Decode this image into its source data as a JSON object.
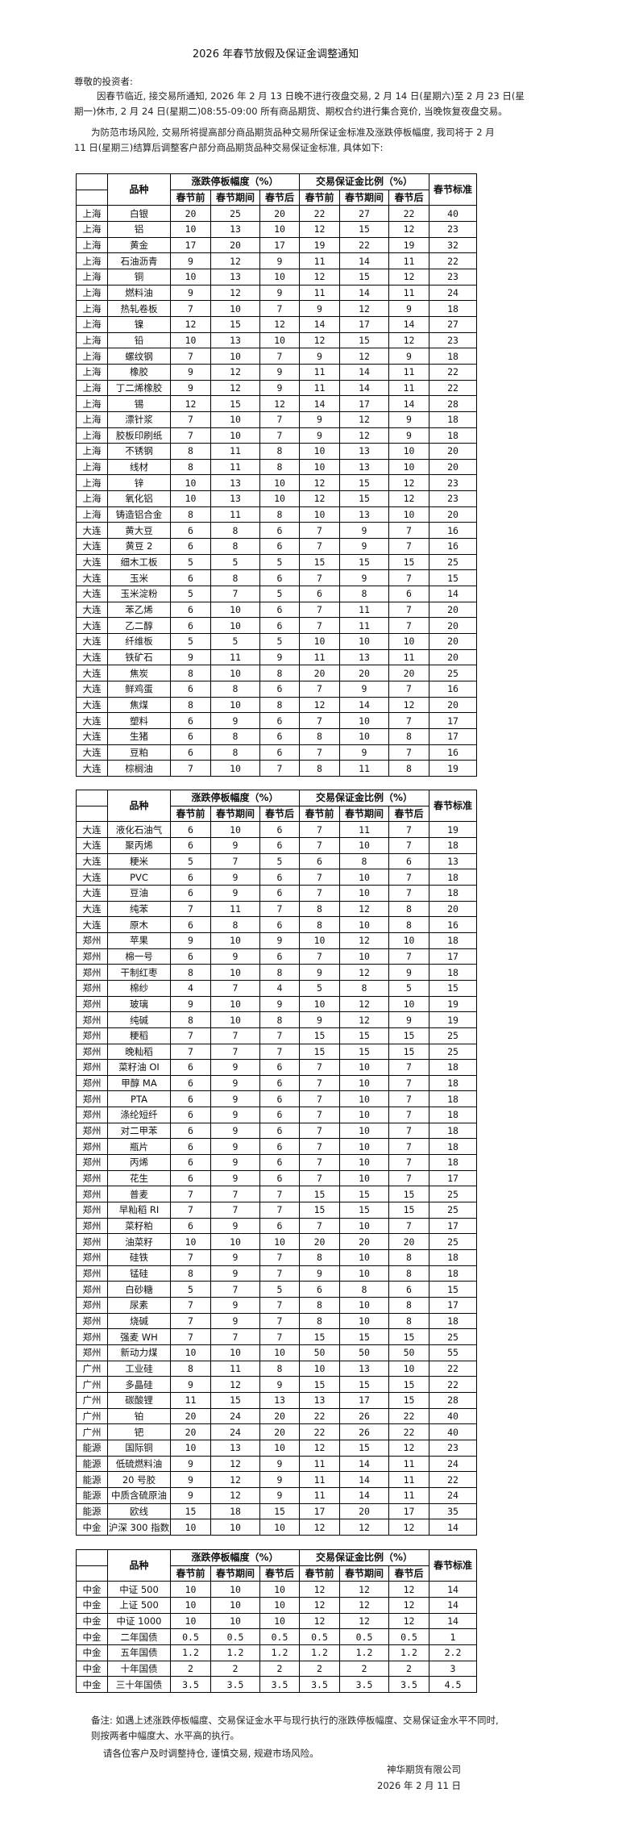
{
  "title": "2026 年春节放假及保证金调整通知",
  "greeting": "尊敬的投资者:",
  "paragraph1": [
    "因春节临近, 接交易所通知, 2026 年 2 月 13 日晚不进行夜盘交易, 2 月 14 日(星期六)至 2 月 23 日(星",
    "期一)休市, 2 月 24 日(星期二)08:55-09:00 所有商品期货、期权合约进行集合竞价, 当晚恢复夜盘交易。"
  ],
  "paragraph2": [
    "为防范市场风险, 交易所将提高部分商品期货品种交易所保证金标准及涨跌停板幅度, 我司将于 2 月",
    "11 日(星期三)结算后调整客户部分商品期货品种交易保证金标准, 具体如下:"
  ],
  "table_header": {
    "variety": "品种",
    "limit_group": "涨跌停板幅度（%）",
    "margin_group": "交易保证金比例（%）",
    "standard": "春节标准",
    "sub": [
      "春节前",
      "春节期间",
      "春节后",
      "春节前",
      "春节期间",
      "春节后"
    ]
  },
  "tables": [
    [
      [
        "上海",
        "白银",
        "20",
        "25",
        "20",
        "22",
        "27",
        "22",
        "40"
      ],
      [
        "上海",
        "铝",
        "10",
        "13",
        "10",
        "12",
        "15",
        "12",
        "23"
      ],
      [
        "上海",
        "黄金",
        "17",
        "20",
        "17",
        "19",
        "22",
        "19",
        "32"
      ],
      [
        "上海",
        "石油沥青",
        "9",
        "12",
        "9",
        "11",
        "14",
        "11",
        "22"
      ],
      [
        "上海",
        "铜",
        "10",
        "13",
        "10",
        "12",
        "15",
        "12",
        "23"
      ],
      [
        "上海",
        "燃料油",
        "9",
        "12",
        "9",
        "11",
        "14",
        "11",
        "24"
      ],
      [
        "上海",
        "热轧卷板",
        "7",
        "10",
        "7",
        "9",
        "12",
        "9",
        "18"
      ],
      [
        "上海",
        "镍",
        "12",
        "15",
        "12",
        "14",
        "17",
        "14",
        "27"
      ],
      [
        "上海",
        "铅",
        "10",
        "13",
        "10",
        "12",
        "15",
        "12",
        "23"
      ],
      [
        "上海",
        "螺纹钢",
        "7",
        "10",
        "7",
        "9",
        "12",
        "9",
        "18"
      ],
      [
        "上海",
        "橡胶",
        "9",
        "12",
        "9",
        "11",
        "14",
        "11",
        "22"
      ],
      [
        "上海",
        "丁二烯橡胶",
        "9",
        "12",
        "9",
        "11",
        "14",
        "11",
        "22"
      ],
      [
        "上海",
        "锡",
        "12",
        "15",
        "12",
        "14",
        "17",
        "14",
        "28"
      ],
      [
        "上海",
        "漂针浆",
        "7",
        "10",
        "7",
        "9",
        "12",
        "9",
        "18"
      ],
      [
        "上海",
        "胶板印刷纸",
        "7",
        "10",
        "7",
        "9",
        "12",
        "9",
        "18"
      ],
      [
        "上海",
        "不锈钢",
        "8",
        "11",
        "8",
        "10",
        "13",
        "10",
        "20"
      ],
      [
        "上海",
        "线材",
        "8",
        "11",
        "8",
        "10",
        "13",
        "10",
        "20"
      ],
      [
        "上海",
        "锌",
        "10",
        "13",
        "10",
        "12",
        "15",
        "12",
        "23"
      ],
      [
        "上海",
        "氧化铝",
        "10",
        "13",
        "10",
        "12",
        "15",
        "12",
        "23"
      ],
      [
        "上海",
        "铸造铝合金",
        "8",
        "11",
        "8",
        "10",
        "13",
        "10",
        "20"
      ],
      [
        "大连",
        "黄大豆",
        "6",
        "8",
        "6",
        "7",
        "9",
        "7",
        "16"
      ],
      [
        "大连",
        "黄豆 2",
        "6",
        "8",
        "6",
        "7",
        "9",
        "7",
        "16"
      ],
      [
        "大连",
        "细木工板",
        "5",
        "5",
        "5",
        "15",
        "15",
        "15",
        "25"
      ],
      [
        "大连",
        "玉米",
        "6",
        "8",
        "6",
        "7",
        "9",
        "7",
        "15"
      ],
      [
        "大连",
        "玉米淀粉",
        "5",
        "7",
        "5",
        "6",
        "8",
        "6",
        "14"
      ],
      [
        "大连",
        "苯乙烯",
        "6",
        "10",
        "6",
        "7",
        "11",
        "7",
        "20"
      ],
      [
        "大连",
        "乙二醇",
        "6",
        "10",
        "6",
        "7",
        "11",
        "7",
        "20"
      ],
      [
        "大连",
        "纤维板",
        "5",
        "5",
        "5",
        "10",
        "10",
        "10",
        "20"
      ],
      [
        "大连",
        "铁矿石",
        "9",
        "11",
        "9",
        "11",
        "13",
        "11",
        "20"
      ],
      [
        "大连",
        "焦炭",
        "8",
        "10",
        "8",
        "20",
        "20",
        "20",
        "25"
      ],
      [
        "大连",
        "鲜鸡蛋",
        "6",
        "8",
        "6",
        "7",
        "9",
        "7",
        "16"
      ],
      [
        "大连",
        "焦煤",
        "8",
        "10",
        "8",
        "12",
        "14",
        "12",
        "20"
      ],
      [
        "大连",
        "塑料",
        "6",
        "9",
        "6",
        "7",
        "10",
        "7",
        "17"
      ],
      [
        "大连",
        "生猪",
        "6",
        "8",
        "6",
        "8",
        "10",
        "8",
        "17"
      ],
      [
        "大连",
        "豆粕",
        "6",
        "8",
        "6",
        "7",
        "9",
        "7",
        "16"
      ],
      [
        "大连",
        "棕榈油",
        "7",
        "10",
        "7",
        "8",
        "11",
        "8",
        "19"
      ]
    ],
    [
      [
        "大连",
        "液化石油气",
        "6",
        "10",
        "6",
        "7",
        "11",
        "7",
        "19"
      ],
      [
        "大连",
        "聚丙烯",
        "6",
        "9",
        "6",
        "7",
        "10",
        "7",
        "18"
      ],
      [
        "大连",
        "粳米",
        "5",
        "7",
        "5",
        "6",
        "8",
        "6",
        "13"
      ],
      [
        "大连",
        "PVC",
        "6",
        "9",
        "6",
        "7",
        "10",
        "7",
        "18"
      ],
      [
        "大连",
        "豆油",
        "6",
        "9",
        "6",
        "7",
        "10",
        "7",
        "18"
      ],
      [
        "大连",
        "纯苯",
        "7",
        "11",
        "7",
        "8",
        "12",
        "8",
        "20"
      ],
      [
        "大连",
        "原木",
        "6",
        "8",
        "6",
        "8",
        "10",
        "8",
        "16"
      ],
      [
        "郑州",
        "苹果",
        "9",
        "10",
        "9",
        "10",
        "12",
        "10",
        "18"
      ],
      [
        "郑州",
        "棉一号",
        "6",
        "9",
        "6",
        "7",
        "10",
        "7",
        "17"
      ],
      [
        "郑州",
        "干制红枣",
        "8",
        "10",
        "8",
        "9",
        "12",
        "9",
        "18"
      ],
      [
        "郑州",
        "棉纱",
        "4",
        "7",
        "4",
        "5",
        "8",
        "5",
        "15"
      ],
      [
        "郑州",
        "玻璃",
        "9",
        "10",
        "9",
        "10",
        "12",
        "10",
        "19"
      ],
      [
        "郑州",
        "纯碱",
        "8",
        "10",
        "8",
        "9",
        "12",
        "9",
        "19"
      ],
      [
        "郑州",
        "粳稻",
        "7",
        "7",
        "7",
        "15",
        "15",
        "15",
        "25"
      ],
      [
        "郑州",
        "晚籼稻",
        "7",
        "7",
        "7",
        "15",
        "15",
        "15",
        "25"
      ],
      [
        "郑州",
        "菜籽油 OI",
        "6",
        "9",
        "6",
        "7",
        "10",
        "7",
        "18"
      ],
      [
        "郑州",
        "甲醇 MA",
        "6",
        "9",
        "6",
        "7",
        "10",
        "7",
        "18"
      ],
      [
        "郑州",
        "PTA",
        "6",
        "9",
        "6",
        "7",
        "10",
        "7",
        "18"
      ],
      [
        "郑州",
        "涤纶短纤",
        "6",
        "9",
        "6",
        "7",
        "10",
        "7",
        "18"
      ],
      [
        "郑州",
        "对二甲苯",
        "6",
        "9",
        "6",
        "7",
        "10",
        "7",
        "18"
      ],
      [
        "郑州",
        "瓶片",
        "6",
        "9",
        "6",
        "7",
        "10",
        "7",
        "18"
      ],
      [
        "郑州",
        "丙烯",
        "6",
        "9",
        "6",
        "7",
        "10",
        "7",
        "18"
      ],
      [
        "郑州",
        "花生",
        "6",
        "9",
        "6",
        "7",
        "10",
        "7",
        "17"
      ],
      [
        "郑州",
        "普麦",
        "7",
        "7",
        "7",
        "15",
        "15",
        "15",
        "25"
      ],
      [
        "郑州",
        "早籼稻 RI",
        "7",
        "7",
        "7",
        "15",
        "15",
        "15",
        "25"
      ],
      [
        "郑州",
        "菜籽粕",
        "6",
        "9",
        "6",
        "7",
        "10",
        "7",
        "17"
      ],
      [
        "郑州",
        "油菜籽",
        "10",
        "10",
        "10",
        "20",
        "20",
        "20",
        "25"
      ],
      [
        "郑州",
        "硅铁",
        "7",
        "9",
        "7",
        "8",
        "10",
        "8",
        "18"
      ],
      [
        "郑州",
        "锰硅",
        "8",
        "9",
        "7",
        "9",
        "10",
        "8",
        "18"
      ],
      [
        "郑州",
        "白砂糖",
        "5",
        "7",
        "5",
        "6",
        "8",
        "6",
        "15"
      ],
      [
        "郑州",
        "尿素",
        "7",
        "9",
        "7",
        "8",
        "10",
        "8",
        "17"
      ],
      [
        "郑州",
        "烧碱",
        "7",
        "9",
        "7",
        "8",
        "10",
        "8",
        "18"
      ],
      [
        "郑州",
        "强麦 WH",
        "7",
        "7",
        "7",
        "15",
        "15",
        "15",
        "25"
      ],
      [
        "郑州",
        "新动力煤",
        "10",
        "10",
        "10",
        "50",
        "50",
        "50",
        "55"
      ],
      [
        "广州",
        "工业硅",
        "8",
        "11",
        "8",
        "10",
        "13",
        "10",
        "22"
      ],
      [
        "广州",
        "多晶硅",
        "9",
        "12",
        "9",
        "15",
        "15",
        "15",
        "22"
      ],
      [
        "广州",
        "碳酸锂",
        "11",
        "15",
        "13",
        "13",
        "17",
        "15",
        "28"
      ],
      [
        "广州",
        "铂",
        "20",
        "24",
        "20",
        "22",
        "26",
        "22",
        "40"
      ],
      [
        "广州",
        "钯",
        "20",
        "24",
        "20",
        "22",
        "26",
        "22",
        "40"
      ],
      [
        "能源",
        "国际铜",
        "10",
        "13",
        "10",
        "12",
        "15",
        "12",
        "23"
      ],
      [
        "能源",
        "低硫燃料油",
        "9",
        "12",
        "9",
        "11",
        "14",
        "11",
        "24"
      ],
      [
        "能源",
        "20 号胶",
        "9",
        "12",
        "9",
        "11",
        "14",
        "11",
        "22"
      ],
      [
        "能源",
        "中质含硫原油",
        "9",
        "12",
        "9",
        "11",
        "14",
        "11",
        "24"
      ],
      [
        "能源",
        "欧线",
        "15",
        "18",
        "15",
        "17",
        "20",
        "17",
        "35"
      ],
      [
        "中金",
        "沪深 300 指数",
        "10",
        "10",
        "10",
        "12",
        "12",
        "12",
        "14"
      ]
    ],
    [
      [
        "中金",
        "中证 500",
        "10",
        "10",
        "10",
        "12",
        "12",
        "12",
        "14"
      ],
      [
        "中金",
        "上证 500",
        "10",
        "10",
        "10",
        "12",
        "12",
        "12",
        "14"
      ],
      [
        "中金",
        "中证 1000",
        "10",
        "10",
        "10",
        "12",
        "12",
        "12",
        "14"
      ],
      [
        "中金",
        "二年国债",
        "0.5",
        "0.5",
        "0.5",
        "0.5",
        "0.5",
        "0.5",
        "1"
      ],
      [
        "中金",
        "五年国债",
        "1.2",
        "1.2",
        "1.2",
        "1.2",
        "1.2",
        "1.2",
        "2.2"
      ],
      [
        "中金",
        "十年国债",
        "2",
        "2",
        "2",
        "2",
        "2",
        "2",
        "3"
      ],
      [
        "中金",
        "三十年国债",
        "3.5",
        "3.5",
        "3.5",
        "3.5",
        "3.5",
        "3.5",
        "4.5"
      ]
    ]
  ],
  "note": [
    "备注: 如遇上述涨跌停板幅度、交易保证金水平与现行执行的涨跌停板幅度、交易保证金水平不同时,",
    "则按两者中幅度大、水平高的执行。"
  ],
  "closing": "请各位客户及时调整持仓, 谨慎交易, 规避市场风险。",
  "company": "神华期货有限公司",
  "date": "2026 年 2 月 11 日"
}
